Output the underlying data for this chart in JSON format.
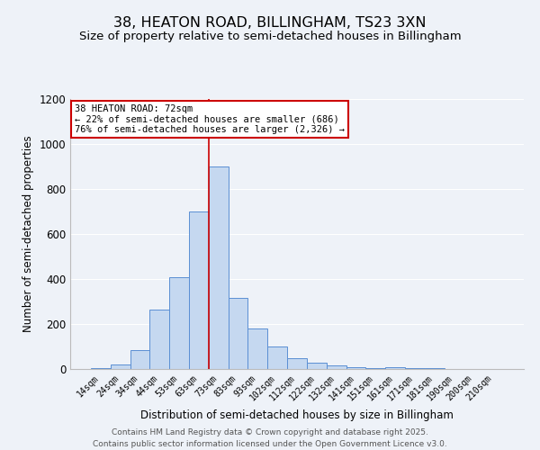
{
  "title_line1": "38, HEATON ROAD, BILLINGHAM, TS23 3XN",
  "title_line2": "Size of property relative to semi-detached houses in Billingham",
  "xlabel": "Distribution of semi-detached houses by size in Billingham",
  "ylabel": "Number of semi-detached properties",
  "categories": [
    "14sqm",
    "24sqm",
    "34sqm",
    "44sqm",
    "53sqm",
    "63sqm",
    "73sqm",
    "83sqm",
    "93sqm",
    "102sqm",
    "112sqm",
    "122sqm",
    "132sqm",
    "141sqm",
    "151sqm",
    "161sqm",
    "171sqm",
    "181sqm",
    "190sqm",
    "200sqm",
    "210sqm"
  ],
  "values": [
    5,
    20,
    85,
    265,
    410,
    700,
    900,
    315,
    180,
    100,
    50,
    30,
    15,
    10,
    5,
    10,
    5,
    5,
    0,
    0,
    0
  ],
  "bar_color": "#c5d8f0",
  "bar_edge_color": "#5b8fd4",
  "background_color": "#eef2f8",
  "grid_color": "#ffffff",
  "vline_x": 6.5,
  "vline_color": "#cc0000",
  "annotation_title": "38 HEATON ROAD: 72sqm",
  "annotation_line2": "← 22% of semi-detached houses are smaller (686)",
  "annotation_line3": "76% of semi-detached houses are larger (2,326) →",
  "annotation_box_color": "#ffffff",
  "annotation_box_edge": "#cc0000",
  "footer_line1": "Contains HM Land Registry data © Crown copyright and database right 2025.",
  "footer_line2": "Contains public sector information licensed under the Open Government Licence v3.0.",
  "ylim": [
    0,
    1200
  ],
  "title_fontsize": 11.5,
  "subtitle_fontsize": 9.5,
  "footer_fontsize": 6.5,
  "ann_fontsize": 7.5
}
